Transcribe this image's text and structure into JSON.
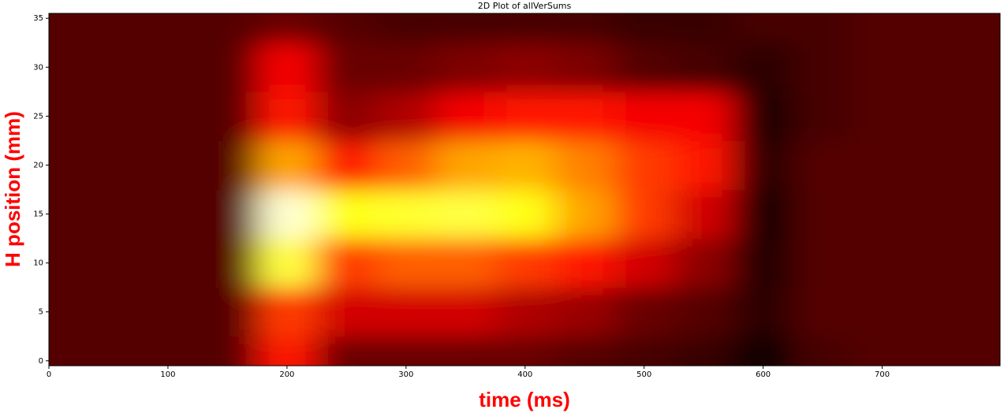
{
  "chart_data": {
    "type": "heatmap",
    "title": "2D Plot of allVerSums",
    "x_label": "time (ms)",
    "y_label": "H position (mm)",
    "colormap": "hot",
    "x": [
      0,
      50,
      100,
      150,
      200,
      250,
      300,
      350,
      400,
      450,
      500,
      550,
      600,
      650,
      700,
      750,
      800
    ],
    "y": [
      0,
      5,
      10,
      15,
      20,
      25,
      30,
      35
    ],
    "z": [
      [
        0.12,
        0.12,
        0.12,
        0.12,
        0.4,
        0.15,
        0.15,
        0.15,
        0.15,
        0.12,
        0.1,
        0.08,
        0.02,
        0.1,
        0.12,
        0.12,
        0.12
      ],
      [
        0.12,
        0.12,
        0.12,
        0.12,
        0.45,
        0.3,
        0.3,
        0.3,
        0.25,
        0.22,
        0.15,
        0.12,
        0.06,
        0.12,
        0.12,
        0.12,
        0.12
      ],
      [
        0.12,
        0.12,
        0.12,
        0.12,
        0.8,
        0.45,
        0.5,
        0.5,
        0.45,
        0.4,
        0.3,
        0.2,
        0.05,
        0.12,
        0.12,
        0.12,
        0.12
      ],
      [
        0.12,
        0.12,
        0.12,
        0.12,
        0.95,
        0.75,
        0.78,
        0.8,
        0.75,
        0.6,
        0.45,
        0.3,
        0.03,
        0.12,
        0.12,
        0.12,
        0.12
      ],
      [
        0.12,
        0.12,
        0.12,
        0.12,
        0.6,
        0.4,
        0.5,
        0.6,
        0.62,
        0.55,
        0.45,
        0.4,
        0.06,
        0.12,
        0.12,
        0.12,
        0.12
      ],
      [
        0.12,
        0.12,
        0.12,
        0.12,
        0.4,
        0.2,
        0.25,
        0.35,
        0.4,
        0.4,
        0.35,
        0.35,
        0.04,
        0.1,
        0.12,
        0.12,
        0.12
      ],
      [
        0.12,
        0.12,
        0.12,
        0.12,
        0.35,
        0.15,
        0.15,
        0.18,
        0.2,
        0.18,
        0.12,
        0.1,
        0.06,
        0.1,
        0.12,
        0.12,
        0.12
      ],
      [
        0.12,
        0.12,
        0.12,
        0.12,
        0.15,
        0.12,
        0.1,
        0.1,
        0.1,
        0.1,
        0.08,
        0.08,
        0.1,
        0.1,
        0.12,
        0.12,
        0.12
      ]
    ],
    "background_level": 0.12,
    "xlim": [
      0,
      799
    ],
    "ylim": [
      -0.5,
      35.5
    ],
    "xticks": [
      0,
      100,
      200,
      300,
      400,
      500,
      600,
      700
    ],
    "yticks": [
      0,
      5,
      10,
      15,
      20,
      25,
      30,
      35
    ]
  }
}
